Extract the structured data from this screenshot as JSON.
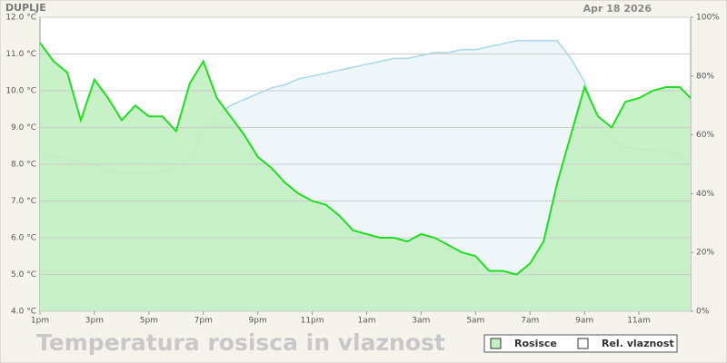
{
  "chart_data": {
    "type": "line",
    "station": "DUPLJE",
    "date": "Apr 18 2026",
    "title": "Temperatura rosisca in vlaznost",
    "x": [
      0,
      0.5,
      1,
      1.5,
      2,
      2.5,
      3,
      3.5,
      4,
      4.5,
      5,
      5.5,
      6,
      6.5,
      7,
      7.5,
      8,
      8.5,
      9,
      9.5,
      10,
      10.5,
      11,
      11.5,
      12,
      12.5,
      13,
      13.5,
      14,
      14.5,
      15,
      15.5,
      16,
      16.5,
      17,
      17.5,
      18,
      18.5,
      19,
      19.5,
      20,
      20.5,
      21,
      21.5,
      22,
      22.5,
      23,
      23.5,
      23.9
    ],
    "xlim": [
      0,
      23.9
    ],
    "xticks": [
      {
        "value": 0,
        "label": "1pm"
      },
      {
        "value": 2,
        "label": "3pm"
      },
      {
        "value": 4,
        "label": "5pm"
      },
      {
        "value": 6,
        "label": "7pm"
      },
      {
        "value": 8,
        "label": "9pm"
      },
      {
        "value": 10,
        "label": "11pm"
      },
      {
        "value": 12,
        "label": "1am"
      },
      {
        "value": 14,
        "label": "3am"
      },
      {
        "value": 16,
        "label": "5am"
      },
      {
        "value": 18,
        "label": "7am"
      },
      {
        "value": 20,
        "label": "9am"
      },
      {
        "value": 22,
        "label": "11am"
      }
    ],
    "ylim": [
      4,
      12
    ],
    "yticks": [
      {
        "value": 4,
        "label": "4.0 °C"
      },
      {
        "value": 5,
        "label": "5.0 °C"
      },
      {
        "value": 6,
        "label": "6.0 °C"
      },
      {
        "value": 7,
        "label": "7.0 °C"
      },
      {
        "value": 8,
        "label": "8.0 °C"
      },
      {
        "value": 9,
        "label": "9.0 °C"
      },
      {
        "value": 10,
        "label": "10.0 °C"
      },
      {
        "value": 11,
        "label": "11.0 °C"
      },
      {
        "value": 12,
        "label": "12.0 °C"
      }
    ],
    "y2lim": [
      0,
      100
    ],
    "y2ticks": [
      {
        "value": 0,
        "label": "0%"
      },
      {
        "value": 20,
        "label": "20%"
      },
      {
        "value": 40,
        "label": "40%"
      },
      {
        "value": 60,
        "label": "60%"
      },
      {
        "value": 80,
        "label": "80%"
      },
      {
        "value": 100,
        "label": "100%"
      }
    ],
    "grid": true,
    "series": [
      {
        "name": "Rosisce",
        "color": "#22dd22",
        "fill": "#c2f0c2",
        "values": [
          11.3,
          10.8,
          10.5,
          9.2,
          10.3,
          9.8,
          9.2,
          9.6,
          9.3,
          9.3,
          8.9,
          10.2,
          10.8,
          9.8,
          9.3,
          8.8,
          8.2,
          7.9,
          7.5,
          7.2,
          7.0,
          6.9,
          6.6,
          6.2,
          6.1,
          6.0,
          6.0,
          5.9,
          6.1,
          6.0,
          5.8,
          5.6,
          5.5,
          5.1,
          5.1,
          5.0,
          5.3,
          5.9,
          7.5,
          8.8,
          10.1,
          9.3,
          9.0,
          9.7,
          9.8,
          10.0,
          10.1,
          10.1,
          9.8
        ]
      },
      {
        "name": "Rel. vlaznost",
        "color": "#a8d8e8",
        "fill": "#eef6fa",
        "axis": "y2",
        "values": [
          54,
          53,
          52,
          51,
          50,
          48,
          47,
          47,
          47,
          48,
          49,
          52,
          62,
          67,
          70,
          72,
          74,
          76,
          77,
          79,
          80,
          81,
          82,
          83,
          84,
          85,
          86,
          86,
          87,
          88,
          88,
          89,
          89,
          90,
          91,
          92,
          92,
          92,
          92,
          86,
          78,
          64,
          58,
          56,
          55,
          55,
          54,
          53,
          49
        ]
      }
    ]
  }
}
